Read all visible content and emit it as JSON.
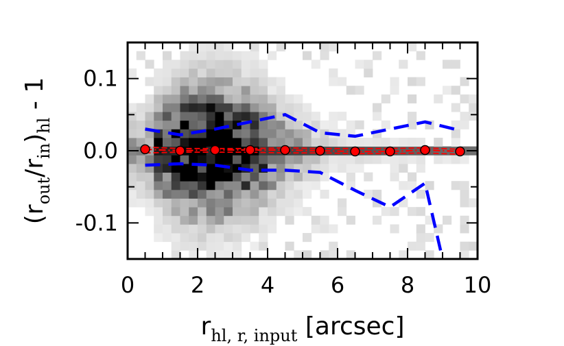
{
  "chart_data": {
    "type": "scatter",
    "xlabel": {
      "base": "r",
      "subscript": "hl, r, input",
      "suffix": " [arcsec]"
    },
    "ylabel": {
      "open": "(r",
      "sub1": "out",
      "mid": "/r",
      "sub2": "in",
      "close": ")",
      "sub3": "hl",
      "suffix": " - 1"
    },
    "xlim": [
      0,
      10
    ],
    "ylim": [
      -0.15,
      0.15
    ],
    "xticks": [
      0,
      2,
      4,
      6,
      8,
      10
    ],
    "xtick_labels": [
      "0",
      "2",
      "4",
      "6",
      "8",
      "10"
    ],
    "yticks": [
      0.1,
      0.0,
      -0.1
    ],
    "ytick_labels": [
      "0.1",
      "0.0",
      "-0.1"
    ],
    "grid": false,
    "background_density": {
      "style": "grayscale 2D histogram",
      "x_bins": 40,
      "y_bins": 25
    },
    "series": [
      {
        "kind": "points",
        "color": "#ff0000",
        "x": [
          0.5,
          1.5,
          2.5,
          3.5,
          4.5,
          5.5,
          6.5,
          7.5,
          8.5,
          9.5
        ],
        "y": [
          0.002,
          0.0,
          0.001,
          0.001,
          0.001,
          0.0,
          -0.001,
          -0.001,
          0.001,
          -0.001
        ]
      },
      {
        "kind": "dash-dot line",
        "color": "#ff0000",
        "x": [
          0.5,
          1.5,
          2.5,
          3.5,
          4.5,
          5.5,
          6.5,
          7.5,
          8.5,
          9.5
        ],
        "y": [
          0.002,
          0.0,
          0.001,
          0.001,
          0.001,
          0.0,
          -0.001,
          -0.001,
          0.001,
          -0.001
        ]
      },
      {
        "kind": "dashed line",
        "color": "#ff0000",
        "x": [
          0.5,
          1.5,
          2.5,
          3.5,
          4.5,
          5.5,
          6.5,
          7.5,
          8.5,
          9.5
        ],
        "y": [
          -0.003,
          -0.002,
          -0.002,
          -0.002,
          -0.003,
          -0.003,
          -0.004,
          -0.004,
          -0.003,
          -0.005
        ]
      },
      {
        "kind": "dashed line",
        "color": "#ff0000",
        "x": [
          0.5,
          1.5,
          2.5,
          3.5,
          4.5,
          5.5,
          6.5,
          7.5,
          8.5,
          9.5
        ],
        "y": [
          0.005,
          0.003,
          0.003,
          0.003,
          0.004,
          0.003,
          0.003,
          0.003,
          0.004,
          0.002
        ]
      },
      {
        "kind": "dashed line",
        "color": "#0000ff",
        "x": [
          0.5,
          1.5,
          2.5,
          3.5,
          4.5,
          5.5,
          6.5,
          7.5,
          8.5,
          9.5
        ],
        "y": [
          0.03,
          0.022,
          0.03,
          0.04,
          0.05,
          0.025,
          0.02,
          0.03,
          0.04,
          0.028
        ]
      },
      {
        "kind": "dashed line",
        "color": "#0000ff",
        "x": [
          0.5,
          1.5,
          2.5,
          3.5,
          4.5,
          5.5,
          6.5,
          7.5,
          8.5,
          9.0
        ],
        "y": [
          -0.02,
          -0.018,
          -0.02,
          -0.027,
          -0.027,
          -0.03,
          -0.055,
          -0.078,
          -0.045,
          -0.15
        ]
      }
    ]
  }
}
